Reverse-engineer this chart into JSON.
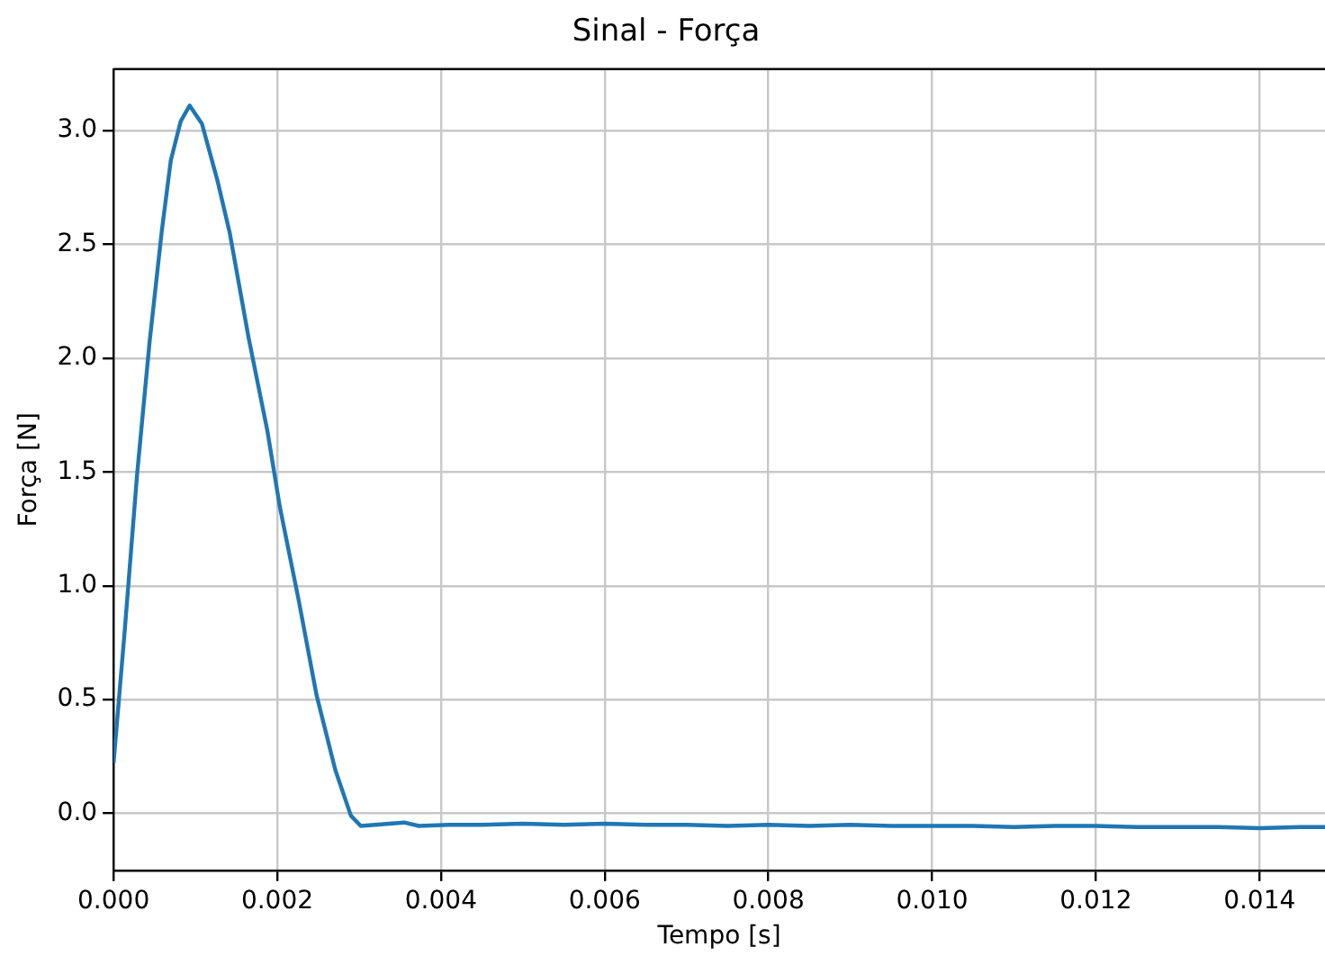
{
  "chart_data": {
    "type": "line",
    "title": "Sinal - Força",
    "xlabel": "Tempo [s]",
    "ylabel": "Força [N]",
    "x": [
      0,
      0.000136,
      0.000288,
      0.00044,
      0.00059,
      0.0007,
      0.00082,
      0.00093,
      0.00108,
      0.00127,
      0.00142,
      0.00165,
      0.00188,
      0.00203,
      0.00226,
      0.00248,
      0.00271,
      0.0029,
      0.00302,
      0.00355,
      0.00373,
      0.0041,
      0.0045,
      0.005,
      0.0055,
      0.006,
      0.0065,
      0.007,
      0.0075,
      0.008,
      0.0085,
      0.009,
      0.0095,
      0.01,
      0.0105,
      0.011,
      0.0115,
      0.012,
      0.0125,
      0.013,
      0.0135,
      0.014,
      0.0145,
      0.0148
    ],
    "series": [
      {
        "color": "#1f77b4",
        "values": [
          0.22,
          0.8,
          1.49,
          2.07,
          2.56,
          2.87,
          3.04,
          3.11,
          3.03,
          2.78,
          2.55,
          2.09,
          1.68,
          1.35,
          0.94,
          0.52,
          0.19,
          -0.01,
          -0.055,
          -0.04,
          -0.055,
          -0.05,
          -0.05,
          -0.045,
          -0.05,
          -0.045,
          -0.05,
          -0.05,
          -0.055,
          -0.05,
          -0.055,
          -0.05,
          -0.055,
          -0.055,
          -0.055,
          -0.06,
          -0.055,
          -0.055,
          -0.06,
          -0.06,
          -0.06,
          -0.065,
          -0.06,
          -0.06
        ]
      }
    ],
    "xlim": [
      0,
      0.0148
    ],
    "ylim": [
      -0.25,
      3.27
    ],
    "xticks": [
      {
        "value": 0,
        "label": "0.000"
      },
      {
        "value": 0.002,
        "label": "0.002"
      },
      {
        "value": 0.004,
        "label": "0.004"
      },
      {
        "value": 0.006,
        "label": "0.006"
      },
      {
        "value": 0.008,
        "label": "0.008"
      },
      {
        "value": 0.01,
        "label": "0.010"
      },
      {
        "value": 0.012,
        "label": "0.012"
      },
      {
        "value": 0.014,
        "label": "0.014"
      }
    ],
    "yticks": [
      {
        "value": 0,
        "label": "0.0"
      },
      0.5,
      {
        "value": 1,
        "label": "1.0"
      },
      1.5,
      {
        "value": 2,
        "label": "2.0"
      },
      2.5,
      {
        "value": 3,
        "label": "3.0"
      }
    ],
    "grid": true,
    "legend": false,
    "marker": "none",
    "line_style": "solid"
  }
}
